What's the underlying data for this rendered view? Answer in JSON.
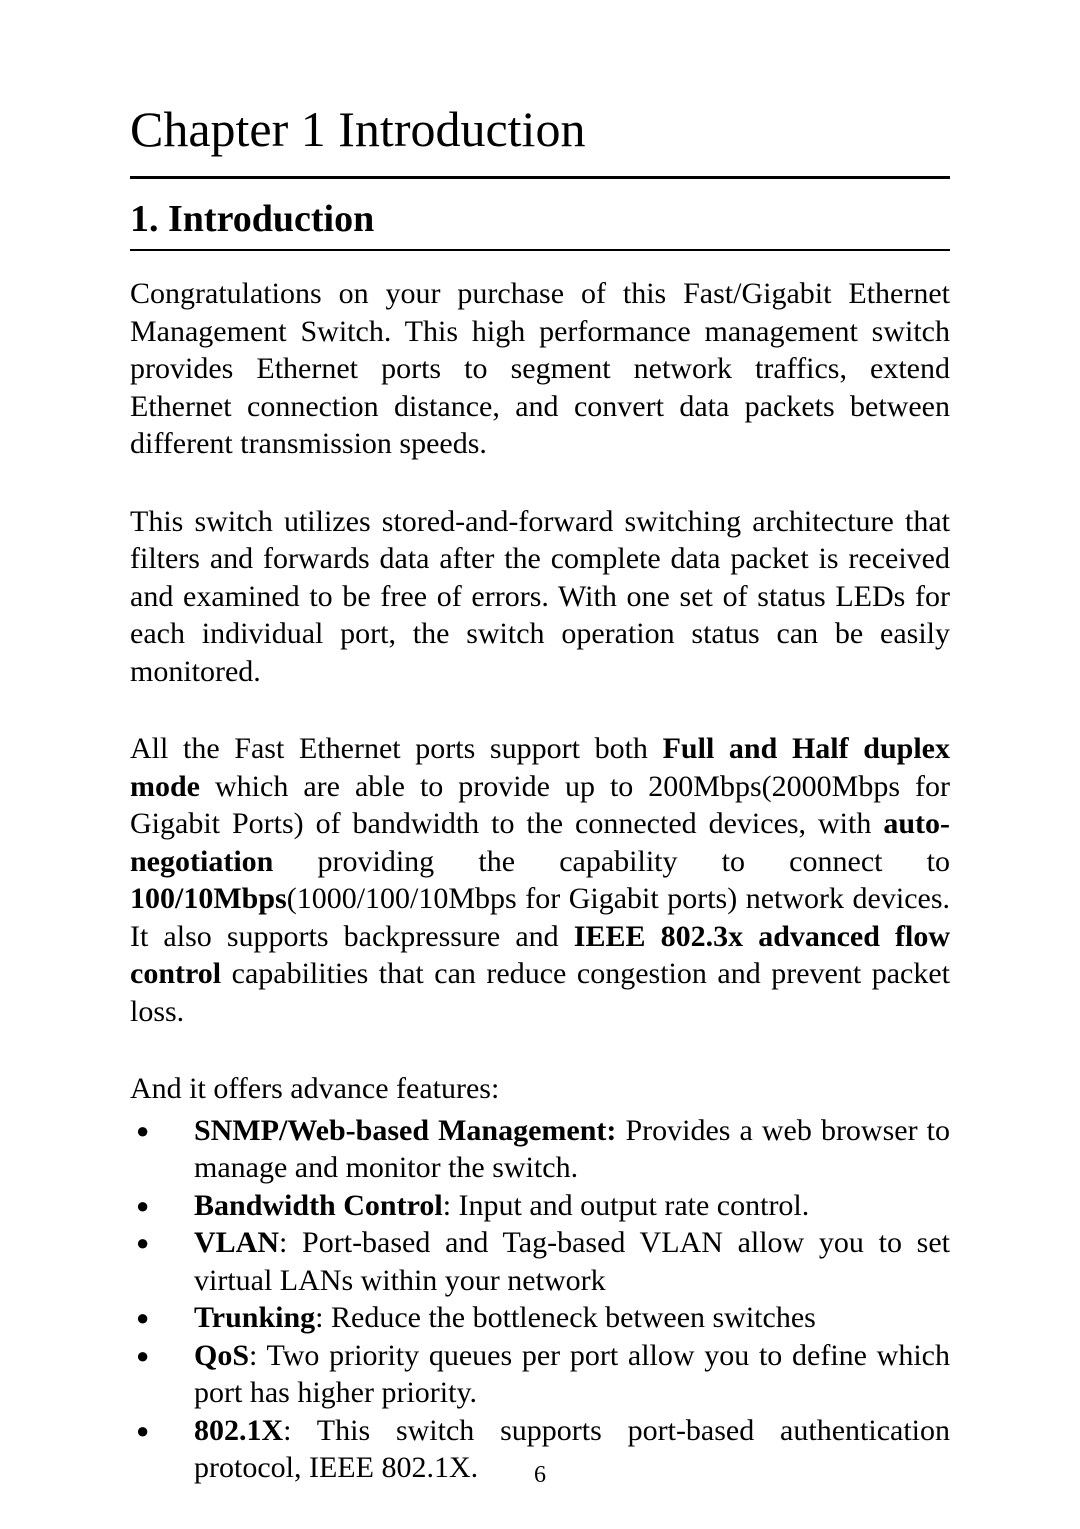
{
  "chapterTitle": "Chapter 1 Introduction",
  "sectionNumber": "1.",
  "sectionTitle": "Introduction",
  "para1": "Congratulations on your purchase of this Fast/Gigabit Ethernet Management Switch. This high performance management switch provides Ethernet ports to segment network traffics, extend Ethernet connection distance, and convert data packets between different transmission speeds.",
  "para2": "This switch utilizes stored-and-forward switching architecture that filters and forwards data after the complete data packet is received and examined to be free of errors.  With one set of status LEDs for each individual port, the switch operation status can be easily monitored.",
  "para3": {
    "t1": "All the Fast Ethernet ports support both ",
    "b1": "Full and Half duplex mode",
    "t2": " which are able to provide up to 200Mbps(2000Mbps for Gigabit Ports) of bandwidth to the connected devices, with ",
    "b2": "auto-negotiation",
    "t3": " providing the capability to connect to ",
    "b3": "100/10Mbps",
    "t4": "(1000/100/10Mbps for Gigabit ports) network devices. It also supports backpressure and ",
    "b4": "IEEE 802.3x advanced flow control",
    "t5": " capabilities that can reduce congestion and prevent packet loss."
  },
  "featuresIntro": "And it offers advance features:",
  "features": [
    {
      "label": "SNMP/Web-based Management:",
      "text": " Provides a web browser to manage and monitor the switch."
    },
    {
      "label": "Bandwidth Control",
      "text": ": Input and output rate control."
    },
    {
      "label": "VLAN",
      "text": ": Port-based and Tag-based VLAN allow you to set virtual LANs within your network"
    },
    {
      "label": "Trunking",
      "text": ": Reduce the bottleneck between switches"
    },
    {
      "label": "QoS",
      "text": ": Two priority queues per port allow you to define which port has higher priority."
    },
    {
      "label": "802.1X",
      "text": ": This switch supports port-based authentication protocol, IEEE 802.1X."
    }
  ],
  "bulletGlyph": "●",
  "pageNumber": "6",
  "colors": {
    "background": "#ffffff",
    "text": "#000000",
    "rule": "#000000"
  },
  "typography": {
    "chapterTitleSize": 50,
    "sectionTitleSize": 38,
    "bodySize": 30,
    "pageNumSize": 24,
    "fontFamily": "Times New Roman"
  }
}
